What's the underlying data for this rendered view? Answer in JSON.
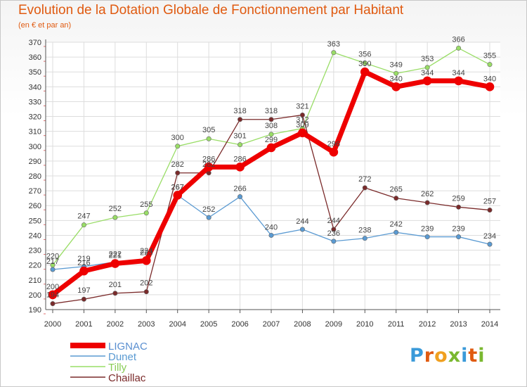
{
  "header": {
    "title": "Evolution de la Dotation Globale de Fonctionnement par Habitant",
    "subtitle": "(en € et par an)"
  },
  "brand": {
    "letters": [
      "P",
      "r",
      "o",
      "x",
      "i",
      "t",
      "i"
    ],
    "colors": [
      "#3a9ad9",
      "#e05a10",
      "#f0a020",
      "#7ab830",
      "#3a9ad9",
      "#e05a10",
      "#7ab830"
    ]
  },
  "chart_data": {
    "type": "line",
    "title": "Evolution de la Dotation Globale de Fonctionnement par Habitant",
    "subtitle": "(en € et par an)",
    "xlabel": "",
    "ylabel": "",
    "x": [
      2000,
      2001,
      2002,
      2003,
      2004,
      2005,
      2006,
      2007,
      2008,
      2009,
      2010,
      2011,
      2012,
      2013,
      2014
    ],
    "ylim": [
      190,
      370
    ],
    "yticks": [
      190,
      200,
      210,
      220,
      230,
      240,
      250,
      260,
      270,
      280,
      290,
      300,
      310,
      320,
      330,
      340,
      350,
      360,
      370
    ],
    "grid": true,
    "legend_position": "bottom-left",
    "series": [
      {
        "name": "Dunet",
        "color": "#5a9ad2",
        "values": [
          217,
          219,
          222,
          224,
          267,
          252,
          266,
          240,
          244,
          236,
          238,
          242,
          239,
          239,
          234
        ],
        "labels": [
          "217",
          "219",
          "222",
          "224",
          "267",
          "252",
          "266",
          "240",
          "244",
          "236",
          "238",
          "242",
          "239",
          "239",
          "234"
        ]
      },
      {
        "name": "Tilly",
        "color": "#99dd66",
        "values": [
          220,
          247,
          252,
          255,
          300,
          305,
          301,
          308,
          312,
          363,
          356,
          349,
          353,
          366,
          355
        ],
        "labels": [
          "220",
          "247",
          "252",
          "255",
          "300",
          "305",
          "301",
          "308",
          "312",
          "363",
          "356",
          "349",
          "353",
          "366",
          "355"
        ]
      },
      {
        "name": "Chaillac",
        "color": "#7a2a2a",
        "values": [
          194,
          197,
          201,
          202,
          282,
          282,
          318,
          318,
          321,
          244,
          272,
          265,
          262,
          259,
          257
        ],
        "labels": [
          "194",
          "197",
          "201",
          "202",
          "282",
          "282",
          "318",
          "318",
          "321",
          "244",
          "272",
          "265",
          "262",
          "259",
          "257"
        ]
      },
      {
        "name": "LIGNAC",
        "color": "#ee0000",
        "values": [
          200,
          216,
          221,
          223,
          267,
          286,
          286,
          299,
          309,
          296,
          350,
          340,
          344,
          344,
          340
        ],
        "labels": [
          "200",
          "216",
          "221",
          "223",
          "267",
          "286",
          "286",
          "299",
          "309",
          "296",
          "350",
          "340",
          "344",
          "344",
          "340"
        ]
      }
    ],
    "legend_order": [
      "LIGNAC",
      "Dunet",
      "Tilly",
      "Chaillac"
    ]
  }
}
